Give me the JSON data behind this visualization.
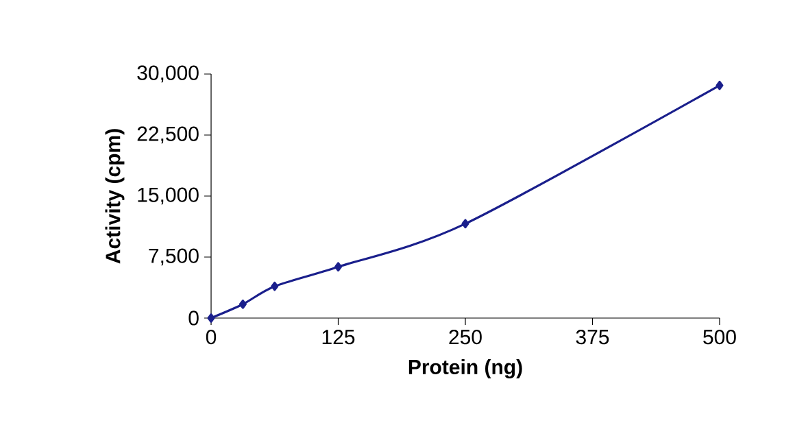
{
  "chart_data": {
    "type": "line",
    "xlabel": "Protein (ng)",
    "ylabel": "Activity (cpm)",
    "x": [
      0,
      31.25,
      62.5,
      125,
      250,
      500
    ],
    "series": [
      {
        "color": "#1a1f8c",
        "values": [
          0,
          1700,
          3900,
          6300,
          11600,
          28600
        ]
      }
    ],
    "xlim": [
      0,
      500
    ],
    "xticks": [
      0,
      125,
      250,
      375,
      500
    ],
    "ylim": [
      0,
      30000
    ],
    "yticks": [
      0,
      {
        "value": 7500,
        "label": "7,500"
      },
      {
        "value": 15000,
        "label": "15,000"
      },
      {
        "value": 22500,
        "label": "22,500"
      },
      {
        "value": 30000,
        "label": "30,000"
      }
    ],
    "marker": "diamond",
    "line_style": "solid"
  }
}
